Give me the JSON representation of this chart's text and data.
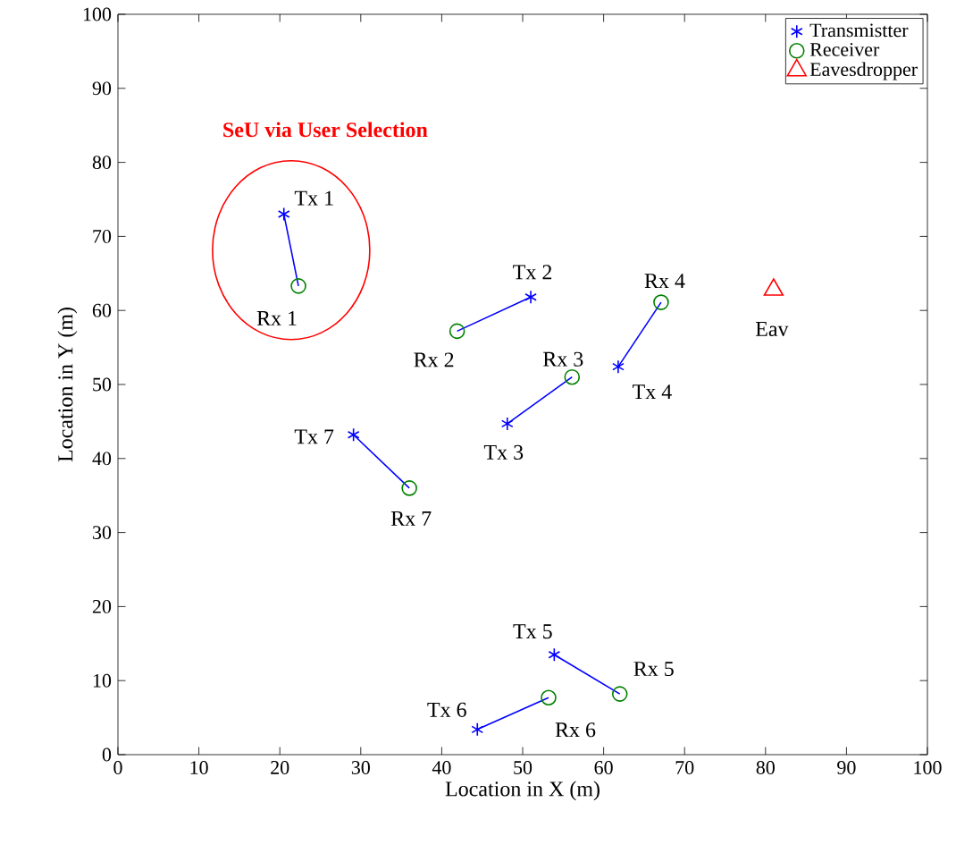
{
  "chart_data": {
    "type": "scatter",
    "xlabel": "Location in X (m)",
    "ylabel": "Location in Y (m)",
    "xlim": [
      0,
      100
    ],
    "ylim": [
      0,
      100
    ],
    "xticks": [
      0,
      10,
      20,
      30,
      40,
      50,
      60,
      70,
      80,
      90,
      100
    ],
    "yticks": [
      0,
      10,
      20,
      30,
      40,
      50,
      60,
      70,
      80,
      90,
      100
    ],
    "legend": "top right",
    "grid": false,
    "series": [
      {
        "type": "line",
        "marker": "none",
        "color": "#0000ff",
        "x": [
          20.5,
          22.3
        ],
        "values": [
          73,
          63.3
        ]
      },
      {
        "type": "line",
        "marker": "none",
        "color": "#0000ff",
        "x": [
          51,
          41.9
        ],
        "values": [
          61.8,
          57.2
        ]
      },
      {
        "type": "line",
        "marker": "none",
        "color": "#0000ff",
        "x": [
          48.1,
          56.1
        ],
        "values": [
          44.7,
          51
        ]
      },
      {
        "type": "line",
        "marker": "none",
        "color": "#0000ff",
        "x": [
          61.8,
          67.1
        ],
        "values": [
          52.4,
          61.1
        ]
      },
      {
        "type": "line",
        "marker": "none",
        "color": "#0000ff",
        "x": [
          53.9,
          62
        ],
        "values": [
          13.5,
          8.2
        ]
      },
      {
        "type": "line",
        "marker": "none",
        "color": "#0000ff",
        "x": [
          44.4,
          53.2
        ],
        "values": [
          3.4,
          7.7
        ]
      },
      {
        "type": "line",
        "marker": "none",
        "color": "#0000ff",
        "x": [
          29.1,
          36
        ],
        "values": [
          43.2,
          36
        ]
      },
      {
        "name": "Transmistter",
        "marker": "cross",
        "color": "#0000ff",
        "x": [
          20.5,
          51,
          48.1,
          61.8,
          53.9,
          44.4,
          29.1
        ],
        "values": [
          73,
          61.8,
          44.7,
          52.4,
          13.5,
          3.4,
          43.2
        ]
      },
      {
        "name": "Receiver",
        "marker": "circle",
        "color": "#008000",
        "x": [
          22.3,
          41.9,
          56.1,
          67.1,
          62,
          53.2,
          36
        ],
        "values": [
          63.3,
          57.2,
          51,
          61.1,
          8.2,
          7.7,
          36
        ]
      },
      {
        "name": "Eavesdropper",
        "marker": "triangle",
        "color": "#ff0000",
        "x": [
          81
        ],
        "values": [
          62.8
        ]
      }
    ],
    "annotations": [
      "SeU via User Selection",
      {
        "text": "Tx 1",
        "x": 20.5,
        "y": 73
      },
      {
        "text": "Rx 1",
        "x": 22.3,
        "y": 63.3
      },
      {
        "text": "Tx 2",
        "x": 51,
        "y": 61.8
      },
      {
        "text": "Rx 2",
        "x": 41.9,
        "y": 57.2
      },
      {
        "text": "Rx 3",
        "x": 56.1,
        "y": 51
      },
      {
        "text": "Tx 3",
        "x": 48.1,
        "y": 44.7
      },
      {
        "text": "Rx 4",
        "x": 67.1,
        "y": 61.1
      },
      {
        "text": "Tx 4",
        "x": 61.8,
        "y": 52.4
      },
      {
        "text": "Eav",
        "x": 81,
        "y": 62.8
      },
      {
        "text": "Tx 7",
        "x": 29.1,
        "y": 43.2
      },
      {
        "text": "Rx 7",
        "x": 36,
        "y": 36
      },
      {
        "text": "Tx 5",
        "x": 53.9,
        "y": 13.5
      },
      {
        "text": "Rx 5",
        "x": 62,
        "y": 8.2
      },
      {
        "text": "Tx 6",
        "x": 44.4,
        "y": 3.4
      },
      {
        "text": "Rx 6",
        "x": 53.2,
        "y": 7.7
      }
    ]
  }
}
